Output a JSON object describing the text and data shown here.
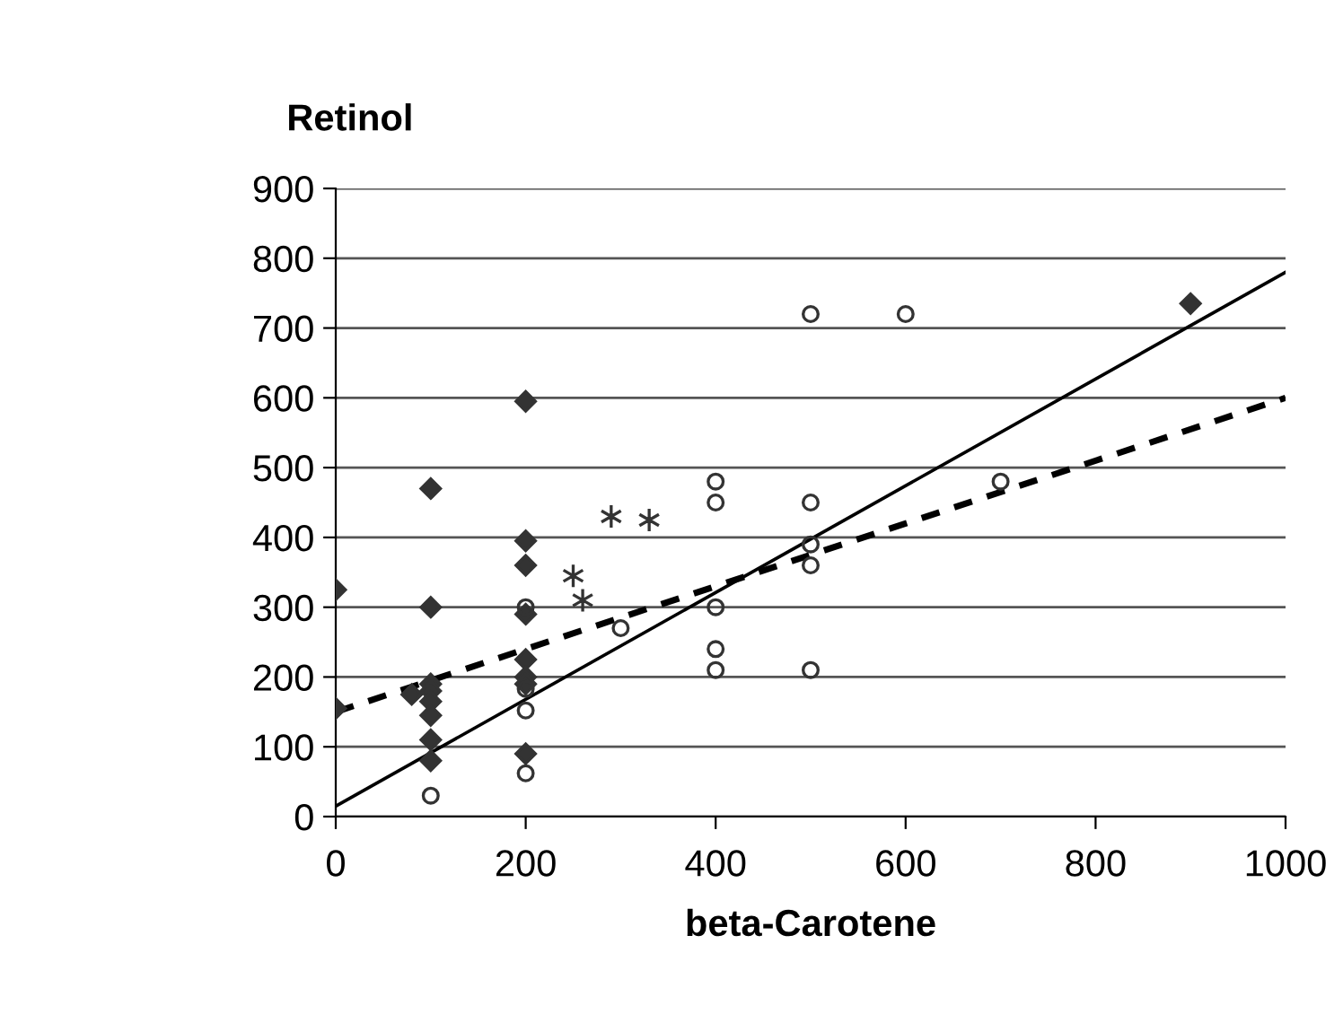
{
  "chart_data": {
    "type": "scatter",
    "xlabel": "beta-Carotene",
    "ylabel": "Retinol",
    "xlim": [
      0,
      1000
    ],
    "ylim": [
      0,
      900
    ],
    "xticks": [
      0,
      200,
      400,
      600,
      800,
      1000
    ],
    "yticks": [
      0,
      100,
      200,
      300,
      400,
      500,
      600,
      700,
      800,
      900
    ],
    "grid": "y",
    "legend": false,
    "series": [
      {
        "marker": "diamond",
        "color": "#333333",
        "x": [
          0,
          0,
          80,
          100,
          100,
          100,
          100,
          100,
          100,
          100,
          100,
          200,
          200,
          200,
          200,
          200,
          200,
          200,
          200,
          900
        ],
        "values": [
          325,
          155,
          175,
          470,
          300,
          190,
          180,
          165,
          145,
          110,
          80,
          595,
          395,
          360,
          290,
          225,
          200,
          190,
          90,
          735
        ]
      },
      {
        "marker": "circle",
        "color": "#333333",
        "x": [
          100,
          200,
          200,
          200,
          200,
          300,
          400,
          400,
          400,
          400,
          400,
          500,
          500,
          500,
          500,
          500,
          600,
          700
        ],
        "values": [
          30,
          300,
          183,
          152,
          62,
          270,
          480,
          450,
          300,
          240,
          210,
          720,
          450,
          390,
          360,
          210,
          720,
          480
        ]
      },
      {
        "marker": "cross",
        "color": "#333333",
        "x": [
          250,
          260,
          290,
          330
        ],
        "values": [
          345,
          310,
          430,
          425
        ]
      },
      {
        "type": "line",
        "line_style": "solid",
        "color": "#000000",
        "x": [
          0,
          1000
        ],
        "values": [
          15,
          780
        ]
      },
      {
        "type": "line",
        "line_style": "dashed",
        "color": "#000000",
        "x": [
          0,
          1000
        ],
        "values": [
          150,
          600
        ]
      }
    ]
  }
}
